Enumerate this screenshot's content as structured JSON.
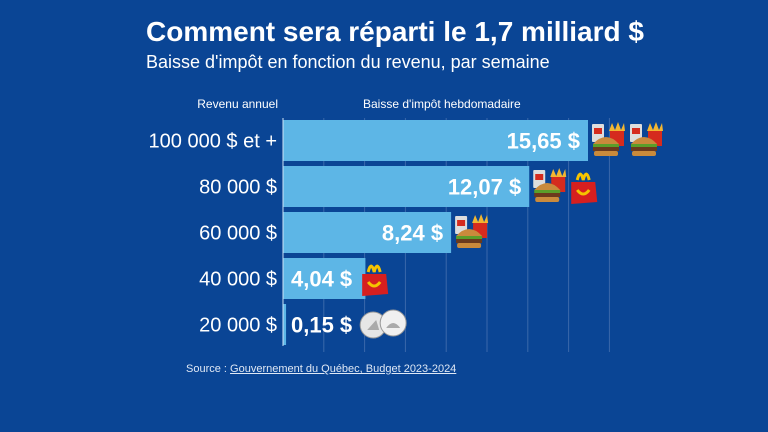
{
  "title": "Comment sera réparti le 1,7 milliard $",
  "subtitle": "Baisse d'impôt en fonction du revenu, par semaine",
  "colors": {
    "background": "#0a4595",
    "bar": "#5db6e6",
    "grid": "#3a68aa"
  },
  "chart_data": {
    "type": "bar",
    "orientation": "horizontal",
    "category_header": "Revenu annuel",
    "value_header": "Baisse d'impôt hebdomadaire",
    "categories": [
      "100 000 $ et +",
      "80 000 $",
      "60 000 $",
      "40 000 $",
      "20 000 $"
    ],
    "values": [
      15.65,
      12.07,
      8.24,
      4.04,
      0.15
    ],
    "value_labels": [
      "15,65 $",
      "12,07 $",
      "8,24 $",
      "4,04 $",
      "0,15 $"
    ],
    "icons": [
      [
        "combo-meal",
        "combo-meal"
      ],
      [
        "combo-meal",
        "happy-meal"
      ],
      [
        "combo-meal"
      ],
      [
        "happy-meal"
      ],
      [
        "coins"
      ]
    ],
    "xlim": [
      0,
      16
    ],
    "grid": true
  },
  "source": {
    "prefix": "Source : ",
    "link": "Gouvernement du Québec, Budget 2023-2024"
  }
}
